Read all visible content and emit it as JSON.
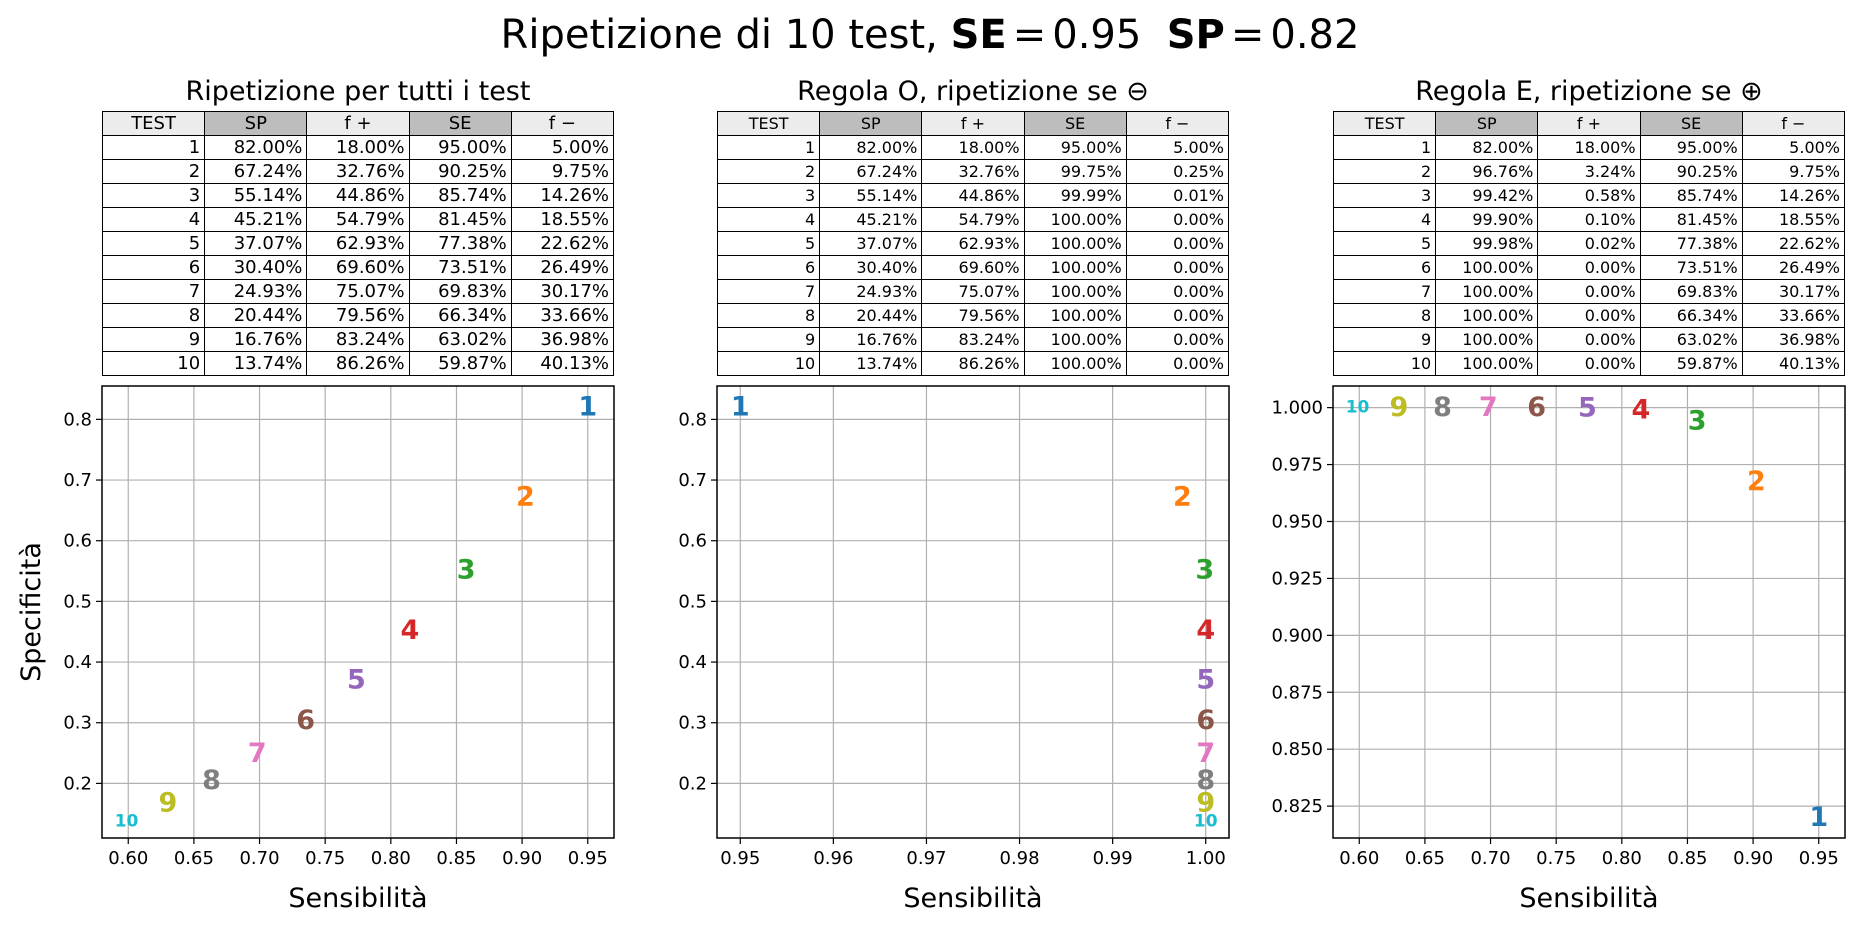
{
  "title": {
    "prefix": "Ripetizione di 10 test, ",
    "se_symbol": "SE",
    "se_value": "0.95",
    "sp_symbol": "SP",
    "sp_value": "0.82",
    "equals": "="
  },
  "table_headers": [
    "TEST",
    "SP",
    "f +",
    "SE",
    "f −"
  ],
  "colors": [
    "#1f77b4",
    "#ff7f0e",
    "#2ca02c",
    "#d62728",
    "#9467bd",
    "#8c564b",
    "#e377c2",
    "#7f7f7f",
    "#bcbd22",
    "#17becf"
  ],
  "chart_data": [
    {
      "type": "scatter",
      "title": "Ripetizione per tutti i test",
      "xlabel": "Sensibilità",
      "ylabel": "Specificità",
      "xlim": [
        0.58,
        0.97
      ],
      "ylim": [
        0.11,
        0.855
      ],
      "xticks": [
        0.6,
        0.65,
        0.7,
        0.75,
        0.8,
        0.85,
        0.9,
        0.95
      ],
      "xtick_labels": [
        "0.60",
        "0.65",
        "0.70",
        "0.75",
        "0.80",
        "0.85",
        "0.90",
        "0.95"
      ],
      "yticks": [
        0.2,
        0.3,
        0.4,
        0.5,
        0.6,
        0.7,
        0.8
      ],
      "ytick_labels": [
        "0.2",
        "0.3",
        "0.4",
        "0.5",
        "0.6",
        "0.7",
        "0.8"
      ],
      "grid": true,
      "points": [
        {
          "label": "1",
          "x": 0.95,
          "y": 0.82
        },
        {
          "label": "2",
          "x": 0.9025,
          "y": 0.6724
        },
        {
          "label": "3",
          "x": 0.8574,
          "y": 0.5514
        },
        {
          "label": "4",
          "x": 0.8145,
          "y": 0.4521
        },
        {
          "label": "5",
          "x": 0.7738,
          "y": 0.3707
        },
        {
          "label": "6",
          "x": 0.7351,
          "y": 0.304
        },
        {
          "label": "7",
          "x": 0.6983,
          "y": 0.2493
        },
        {
          "label": "8",
          "x": 0.6634,
          "y": 0.2044
        },
        {
          "label": "9",
          "x": 0.6302,
          "y": 0.1676
        },
        {
          "label": "10",
          "x": 0.5987,
          "y": 0.1374
        }
      ],
      "table": [
        [
          "1",
          "82.00%",
          "18.00%",
          "95.00%",
          "5.00%"
        ],
        [
          "2",
          "67.24%",
          "32.76%",
          "90.25%",
          "9.75%"
        ],
        [
          "3",
          "55.14%",
          "44.86%",
          "85.74%",
          "14.26%"
        ],
        [
          "4",
          "45.21%",
          "54.79%",
          "81.45%",
          "18.55%"
        ],
        [
          "5",
          "37.07%",
          "62.93%",
          "77.38%",
          "22.62%"
        ],
        [
          "6",
          "30.40%",
          "69.60%",
          "73.51%",
          "26.49%"
        ],
        [
          "7",
          "24.93%",
          "75.07%",
          "69.83%",
          "30.17%"
        ],
        [
          "8",
          "20.44%",
          "79.56%",
          "66.34%",
          "33.66%"
        ],
        [
          "9",
          "16.76%",
          "83.24%",
          "63.02%",
          "36.98%"
        ],
        [
          "10",
          "13.74%",
          "86.26%",
          "59.87%",
          "40.13%"
        ]
      ]
    },
    {
      "type": "scatter",
      "title": "Regola O, ripetizione se ⊖",
      "xlabel": "Sensibilità",
      "ylabel": "",
      "xlim": [
        0.9475,
        1.0025
      ],
      "ylim": [
        0.11,
        0.855
      ],
      "xticks": [
        0.95,
        0.96,
        0.97,
        0.98,
        0.99,
        1.0
      ],
      "xtick_labels": [
        "0.95",
        "0.96",
        "0.97",
        "0.98",
        "0.99",
        "1.00"
      ],
      "yticks": [
        0.2,
        0.3,
        0.4,
        0.5,
        0.6,
        0.7,
        0.8
      ],
      "ytick_labels": [
        "0.2",
        "0.3",
        "0.4",
        "0.5",
        "0.6",
        "0.7",
        "0.8"
      ],
      "grid": true,
      "points": [
        {
          "label": "1",
          "x": 0.95,
          "y": 0.82
        },
        {
          "label": "2",
          "x": 0.9975,
          "y": 0.6724
        },
        {
          "label": "3",
          "x": 0.9999,
          "y": 0.5514
        },
        {
          "label": "4",
          "x": 1.0,
          "y": 0.4521
        },
        {
          "label": "5",
          "x": 1.0,
          "y": 0.3707
        },
        {
          "label": "6",
          "x": 1.0,
          "y": 0.304
        },
        {
          "label": "7",
          "x": 1.0,
          "y": 0.2493
        },
        {
          "label": "8",
          "x": 1.0,
          "y": 0.2044
        },
        {
          "label": "9",
          "x": 1.0,
          "y": 0.1676
        },
        {
          "label": "10",
          "x": 1.0,
          "y": 0.1374
        }
      ],
      "table": [
        [
          "1",
          "82.00%",
          "18.00%",
          "95.00%",
          "5.00%"
        ],
        [
          "2",
          "67.24%",
          "32.76%",
          "99.75%",
          "0.25%"
        ],
        [
          "3",
          "55.14%",
          "44.86%",
          "99.99%",
          "0.01%"
        ],
        [
          "4",
          "45.21%",
          "54.79%",
          "100.00%",
          "0.00%"
        ],
        [
          "5",
          "37.07%",
          "62.93%",
          "100.00%",
          "0.00%"
        ],
        [
          "6",
          "30.40%",
          "69.60%",
          "100.00%",
          "0.00%"
        ],
        [
          "7",
          "24.93%",
          "75.07%",
          "100.00%",
          "0.00%"
        ],
        [
          "8",
          "20.44%",
          "79.56%",
          "100.00%",
          "0.00%"
        ],
        [
          "9",
          "16.76%",
          "83.24%",
          "100.00%",
          "0.00%"
        ],
        [
          "10",
          "13.74%",
          "86.26%",
          "100.00%",
          "0.00%"
        ]
      ]
    },
    {
      "type": "scatter",
      "title": "Regola E, ripetizione se ⊕",
      "xlabel": "Sensibilità",
      "ylabel": "",
      "xlim": [
        0.58,
        0.97
      ],
      "ylim": [
        0.811,
        1.0095
      ],
      "xticks": [
        0.6,
        0.65,
        0.7,
        0.75,
        0.8,
        0.85,
        0.9,
        0.95
      ],
      "xtick_labels": [
        "0.60",
        "0.65",
        "0.70",
        "0.75",
        "0.80",
        "0.85",
        "0.90",
        "0.95"
      ],
      "yticks": [
        0.825,
        0.85,
        0.875,
        0.9,
        0.925,
        0.95,
        0.975,
        1.0
      ],
      "ytick_labels": [
        "0.825",
        "0.850",
        "0.875",
        "0.900",
        "0.925",
        "0.950",
        "0.975",
        "1.000"
      ],
      "grid": true,
      "points": [
        {
          "label": "1",
          "x": 0.95,
          "y": 0.82
        },
        {
          "label": "2",
          "x": 0.9025,
          "y": 0.9676
        },
        {
          "label": "3",
          "x": 0.8574,
          "y": 0.9942
        },
        {
          "label": "4",
          "x": 0.8145,
          "y": 0.999
        },
        {
          "label": "5",
          "x": 0.7738,
          "y": 0.9998
        },
        {
          "label": "6",
          "x": 0.7351,
          "y": 1.0
        },
        {
          "label": "7",
          "x": 0.6983,
          "y": 1.0
        },
        {
          "label": "8",
          "x": 0.6634,
          "y": 1.0
        },
        {
          "label": "9",
          "x": 0.6302,
          "y": 1.0
        },
        {
          "label": "10",
          "x": 0.5987,
          "y": 1.0
        }
      ],
      "table": [
        [
          "1",
          "82.00%",
          "18.00%",
          "95.00%",
          "5.00%"
        ],
        [
          "2",
          "96.76%",
          "3.24%",
          "90.25%",
          "9.75%"
        ],
        [
          "3",
          "99.42%",
          "0.58%",
          "85.74%",
          "14.26%"
        ],
        [
          "4",
          "99.90%",
          "0.10%",
          "81.45%",
          "18.55%"
        ],
        [
          "5",
          "99.98%",
          "0.02%",
          "77.38%",
          "22.62%"
        ],
        [
          "6",
          "100.00%",
          "0.00%",
          "73.51%",
          "26.49%"
        ],
        [
          "7",
          "100.00%",
          "0.00%",
          "69.83%",
          "30.17%"
        ],
        [
          "8",
          "100.00%",
          "0.00%",
          "66.34%",
          "33.66%"
        ],
        [
          "9",
          "100.00%",
          "0.00%",
          "63.02%",
          "36.98%"
        ],
        [
          "10",
          "100.00%",
          "0.00%",
          "59.87%",
          "40.13%"
        ]
      ]
    }
  ]
}
